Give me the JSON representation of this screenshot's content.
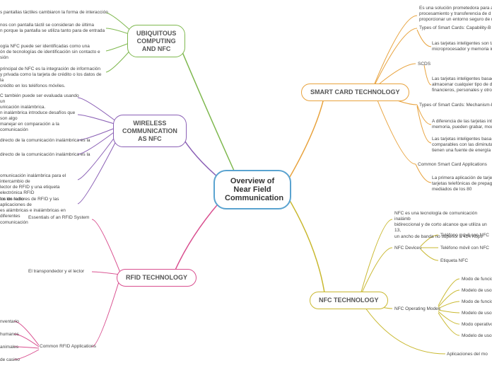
{
  "center": {
    "title": "Overview of\nNear Field\nCommunication",
    "border_color": "#5aa3d0"
  },
  "branches": {
    "ubiq": {
      "label": "UBIQUITOUS\nCOMPUTING\nAND NFC",
      "color": "#7fb84f"
    },
    "wireless": {
      "label": "WIRELESS\nCOMMUNICATION\nAS NFC",
      "color": "#8a5fb5"
    },
    "rfid": {
      "label": "RFID TECHNOLOGY",
      "color": "#d94f8f"
    },
    "smart": {
      "label": "SMART CARD TECHNOLOGY",
      "color": "#e8a23c"
    },
    "nfc": {
      "label": "NFC TECHNOLOGY",
      "color": "#c9b82f"
    }
  },
  "leaves": {
    "ubiq1": "s pantallas táctiles cambiaron la forma de interacción",
    "ubiq2": "nos con pantalla táctil se consideran de última\nn porque la pantalla se utiliza tanto para de entrada",
    "ubiq3": "ogía NFC puede ser identificadas como una\nón de tecnologías de identificación sin contacto e\nsión",
    "ubiq4": "principal de NFC es la integración de información\ny privada como la tarjeta de crédito o los datos de la\ncrédito en los teléfonos móviles.",
    "wire1": "C también puede ser evaluada usando un\nunicación inalámbrica.",
    "wire2": "n inalámbrica introduce desafíos que son algo\nmanejar en comparación a la comunicación",
    "wire3": "directo de la comunicación inalámbrica es la",
    "wire4": "directo de la comunicación inalámbrica es la",
    "wire5": "omunicación inalámbrica para el intercambio de\nlector de RFID y una etiqueta electrónica RFID\nlos de radio",
    "wire6": "tre los lectores de RFID y las aplicaciones de\nes alámbricas e inalámbricas en diferentes\ncomunicación",
    "rfid_ess": "Essentials of an RFID System",
    "rfid_trans": "El transpondedor y el lector",
    "rfid_common": "Common RFID Applications",
    "rfid_inv": "nventario",
    "rfid_hum": "humanos",
    "rfid_ani": "animales",
    "rfid_cas": "de casino",
    "smart1": "Es una solución prometedora para a\nprocesamiento y transferencia de d\nproporcionar un entorno seguro de m",
    "smart_types1": "Types of Smart Cards: Capability-B",
    "smart_micro": "Las tarjetas inteligentes son ta\nmicroprocesador y memoria in",
    "smart_scds": "SCDS",
    "smart_fin": "Las tarjetas inteligentes basad\nalmacenar cualquier tipo de da\nfinancieros, personales y otros",
    "smart_types2": "Types of Smart Cards: Mechanism-B",
    "smart_diff": "A diferencia de las tarjetas inte\nmemoria, pueden grabar, modi",
    "smart_comp": "Las tarjetas inteligentes basa\ncomparables con las diminutas\ntienen una fuente de energía i",
    "smart_common": "Common Smart Card Applications",
    "smart_prepago": "La primera aplicación de tarjet\ntarjetas telefónicas de prepago\nmediados de los 80",
    "nfc_desc": "NFC es una tecnología de comunicación inalámb\nbidireccional y de corto alcance que utiliza un 13,\nun ancho de banda no superior a 424 Kbps",
    "nfc_devices": "NFC Devices",
    "nfc_tel1": "Teléfono móvil con NFC",
    "nfc_tel2": "Teléfono móvil con NFC",
    "nfc_etiq": "Etiqueta NFC",
    "nfc_modes": "NFC Operating Modes",
    "nfc_m1": "Modo de funcio",
    "nfc_m2": "Modelo de uso c",
    "nfc_m3": "Modo de funcio",
    "nfc_m4": "Modelo de uso q",
    "nfc_m5": "Modo operativo",
    "nfc_m6": "Modelo de uso q",
    "nfc_apps": "Aplicaciones del mo"
  },
  "colors": {
    "ubiq": "#7fb84f",
    "wireless": "#8a5fb5",
    "rfid": "#d94f8f",
    "smart": "#e8a23c",
    "nfc": "#c9b82f"
  }
}
